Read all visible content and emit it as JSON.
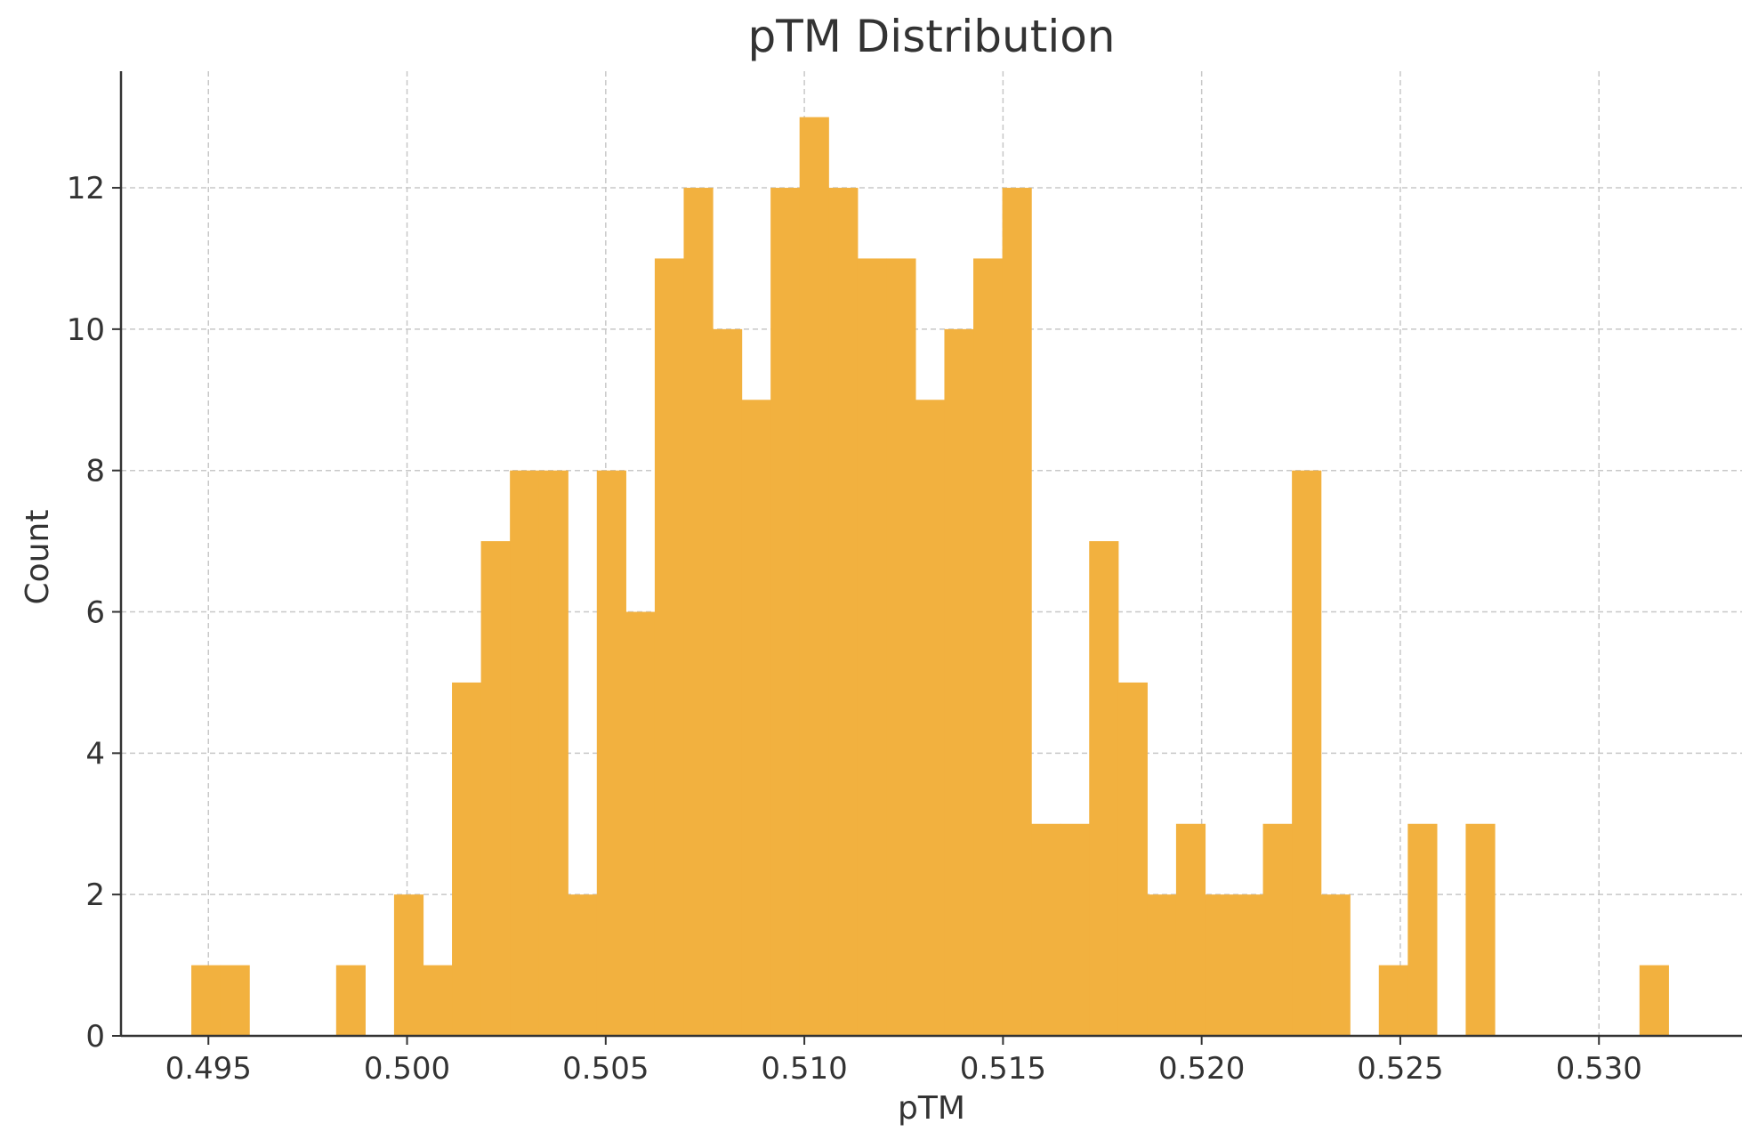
{
  "chart_data": {
    "type": "bar",
    "title": "pTM Distribution",
    "xlabel": "pTM",
    "ylabel": "Count",
    "xlim": [
      0.4928,
      0.5336
    ],
    "ylim": [
      0,
      13.65
    ],
    "x_ticks": [
      0.495,
      0.5,
      0.505,
      0.51,
      0.515,
      0.52,
      0.525,
      0.53
    ],
    "y_ticks": [
      0,
      2,
      4,
      6,
      8,
      10,
      12
    ],
    "grid": true,
    "bar_color": "#F2B13F",
    "bin_start": 0.49457,
    "bin_width": 0.000729,
    "counts": [
      1,
      1,
      0,
      0,
      0,
      1,
      0,
      2,
      1,
      5,
      7,
      8,
      8,
      2,
      8,
      6,
      11,
      12,
      10,
      9,
      12,
      13,
      12,
      11,
      11,
      9,
      10,
      11,
      12,
      3,
      3,
      7,
      5,
      2,
      3,
      2,
      2,
      3,
      8,
      2,
      0,
      1,
      3,
      0,
      3,
      0,
      0,
      0,
      0,
      0,
      1
    ]
  },
  "colors": {
    "bars": "#F2B13F",
    "grid": "#c8c8c8",
    "axis": "#333333",
    "text": "#333333"
  }
}
